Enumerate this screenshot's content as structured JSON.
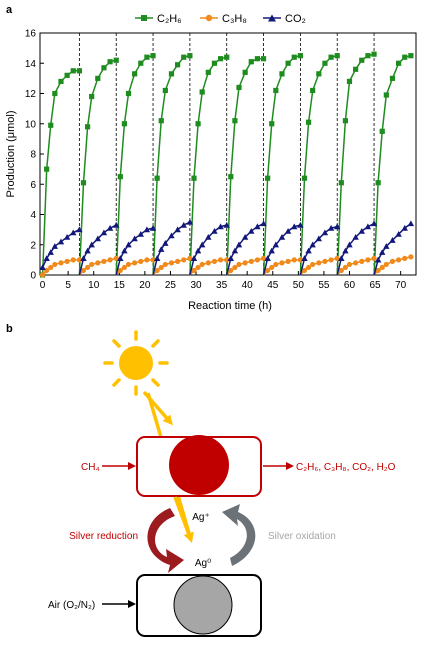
{
  "panel_a": {
    "label": "a",
    "chart_data": {
      "type": "line",
      "xlabel": "Reaction time (h)",
      "ylabel": "Production (μmol)",
      "xlim": [
        -0.5,
        73
      ],
      "ylim": [
        0,
        16
      ],
      "xticks": [
        0,
        5,
        10,
        15,
        20,
        25,
        30,
        35,
        40,
        45,
        50,
        55,
        60,
        65,
        70
      ],
      "yticks": [
        0,
        2,
        4,
        6,
        8,
        10,
        12,
        14,
        16
      ],
      "cycle_starts": [
        0,
        7.2,
        14.4,
        21.6,
        28.8,
        36,
        43.2,
        50.4,
        57.6,
        64.8
      ],
      "cycle_sample_offsets": [
        0,
        0.8,
        1.6,
        2.4,
        3.6,
        4.8,
        6.0,
        7.2
      ],
      "legend": {
        "placement": "top",
        "entries": [
          "C₂H₆",
          "C₃H₈",
          "CO₂"
        ]
      },
      "grid": false,
      "series": [
        {
          "name": "C₂H₆",
          "color": "#1e8c1e",
          "marker": "square",
          "cycles": [
            [
              0,
              7.0,
              9.9,
              12.0,
              12.8,
              13.2,
              13.5,
              13.5
            ],
            [
              0,
              6.1,
              9.8,
              11.8,
              13.0,
              13.7,
              14.1,
              14.2
            ],
            [
              0,
              6.5,
              10.0,
              12.0,
              13.3,
              14.0,
              14.4,
              14.5
            ],
            [
              0,
              6.4,
              10.2,
              12.2,
              13.3,
              13.9,
              14.4,
              14.5
            ],
            [
              0,
              6.4,
              10.0,
              12.1,
              13.4,
              14.0,
              14.3,
              14.4
            ],
            [
              0,
              6.5,
              10.2,
              12.4,
              13.4,
              14.1,
              14.3,
              14.3
            ],
            [
              0,
              6.4,
              10.0,
              12.2,
              13.3,
              14.0,
              14.4,
              14.5
            ],
            [
              0,
              6.4,
              10.1,
              12.2,
              13.3,
              14.0,
              14.4,
              14.5
            ],
            [
              0,
              6.1,
              10.2,
              12.8,
              13.6,
              14.2,
              14.5,
              14.6
            ],
            [
              0,
              6.1,
              9.5,
              11.9,
              13.0,
              14.0,
              14.4,
              14.5
            ]
          ]
        },
        {
          "name": "C₃H₈",
          "color": "#f08a1c",
          "marker": "circle",
          "cycles": [
            [
              0,
              0.3,
              0.5,
              0.7,
              0.8,
              0.9,
              1.0,
              1.0
            ],
            [
              0,
              0.3,
              0.5,
              0.7,
              0.8,
              0.9,
              1.0,
              1.1
            ],
            [
              0,
              0.3,
              0.5,
              0.7,
              0.8,
              0.9,
              1.0,
              1.0
            ],
            [
              0,
              0.3,
              0.5,
              0.7,
              0.8,
              0.9,
              1.0,
              1.1
            ],
            [
              0,
              0.3,
              0.5,
              0.7,
              0.8,
              0.9,
              1.0,
              1.0
            ],
            [
              0,
              0.3,
              0.5,
              0.7,
              0.8,
              0.9,
              1.0,
              1.1
            ],
            [
              0,
              0.3,
              0.5,
              0.7,
              0.8,
              0.9,
              1.0,
              1.0
            ],
            [
              0,
              0.3,
              0.5,
              0.7,
              0.8,
              0.9,
              1.0,
              1.1
            ],
            [
              0,
              0.3,
              0.5,
              0.7,
              0.8,
              0.9,
              1.0,
              1.1
            ],
            [
              0,
              0.3,
              0.5,
              0.7,
              0.9,
              1.0,
              1.1,
              1.2
            ]
          ]
        },
        {
          "name": "CO₂",
          "color": "#12187a",
          "marker": "triangle",
          "cycles": [
            [
              0.5,
              1.1,
              1.5,
              1.9,
              2.2,
              2.5,
              2.8,
              3.0
            ],
            [
              0,
              1.1,
              1.6,
              2.0,
              2.4,
              2.8,
              3.1,
              3.3
            ],
            [
              0,
              1.1,
              1.6,
              2.0,
              2.4,
              2.7,
              3.0,
              3.1
            ],
            [
              0,
              1.1,
              1.7,
              2.1,
              2.6,
              3.0,
              3.3,
              3.5
            ],
            [
              0,
              1.1,
              1.6,
              2.0,
              2.5,
              2.9,
              3.2,
              3.3
            ],
            [
              0,
              1.1,
              1.6,
              2.0,
              2.5,
              2.9,
              3.2,
              3.4
            ],
            [
              0,
              1.1,
              1.6,
              2.0,
              2.5,
              2.9,
              3.2,
              3.3
            ],
            [
              0,
              1.1,
              1.6,
              2.0,
              2.4,
              2.8,
              3.1,
              3.2
            ],
            [
              0,
              1.1,
              1.6,
              2.0,
              2.5,
              2.9,
              3.2,
              3.4
            ],
            [
              0,
              1.0,
              1.5,
              1.9,
              2.3,
              2.7,
              3.1,
              3.4
            ]
          ]
        }
      ]
    }
  },
  "panel_b": {
    "label": "b",
    "inlet_label": "CH₄",
    "products_label": "C₂H₆, C₃H₈, CO₂, H₂O",
    "ag_plus_label": "Ag⁺",
    "ag_zero_label": "Ag⁰",
    "reduction_label": "Silver reduction",
    "oxidation_label": "Silver oxidation",
    "air_label": "Air (O₂/N₂)",
    "colors": {
      "red": "#c00000",
      "sun": "#ffc000",
      "grey": "#a6a6a6",
      "dark_red": "#9b1b1f",
      "slate": "#6b7278"
    }
  }
}
